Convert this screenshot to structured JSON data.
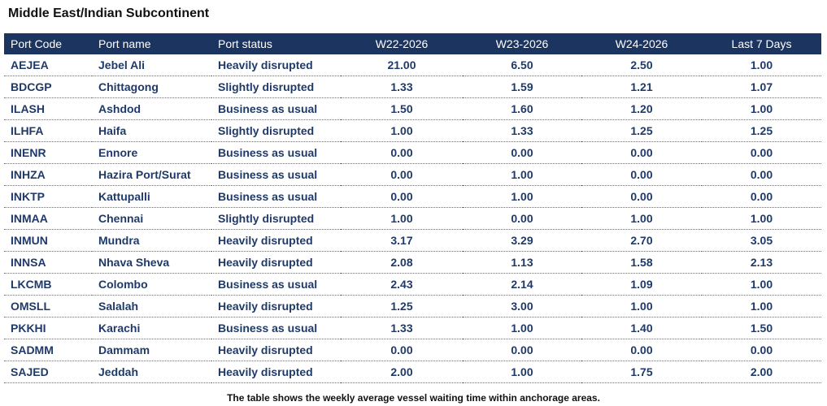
{
  "title": "Middle East/Indian Subcontinent",
  "columns": [
    "Port Code",
    "Port name",
    "Port status",
    "W22-2026",
    "W23-2026",
    "W24-2026",
    "Last 7 Days"
  ],
  "rows": [
    {
      "code": "AEJEA",
      "name": "Jebel Ali",
      "status": "Heavily disrupted",
      "w22": "21.00",
      "w23": "6.50",
      "w24": "2.50",
      "last7": "1.00"
    },
    {
      "code": "BDCGP",
      "name": "Chittagong",
      "status": "Slightly disrupted",
      "w22": "1.33",
      "w23": "1.59",
      "w24": "1.21",
      "last7": "1.07"
    },
    {
      "code": "ILASH",
      "name": "Ashdod",
      "status": "Business as usual",
      "w22": "1.50",
      "w23": "1.60",
      "w24": "1.20",
      "last7": "1.00"
    },
    {
      "code": "ILHFA",
      "name": "Haifa",
      "status": "Slightly disrupted",
      "w22": "1.00",
      "w23": "1.33",
      "w24": "1.25",
      "last7": "1.25"
    },
    {
      "code": "INENR",
      "name": "Ennore",
      "status": "Business as usual",
      "w22": "0.00",
      "w23": "0.00",
      "w24": "0.00",
      "last7": "0.00"
    },
    {
      "code": "INHZA",
      "name": "Hazira Port/Surat",
      "status": "Business as usual",
      "w22": "0.00",
      "w23": "1.00",
      "w24": "0.00",
      "last7": "0.00"
    },
    {
      "code": "INKTP",
      "name": "Kattupalli",
      "status": "Business as usual",
      "w22": "0.00",
      "w23": "1.00",
      "w24": "0.00",
      "last7": "0.00"
    },
    {
      "code": "INMAA",
      "name": "Chennai",
      "status": "Slightly disrupted",
      "w22": "1.00",
      "w23": "0.00",
      "w24": "1.00",
      "last7": "1.00"
    },
    {
      "code": "INMUN",
      "name": "Mundra",
      "status": "Heavily disrupted",
      "w22": "3.17",
      "w23": "3.29",
      "w24": "2.70",
      "last7": "3.05"
    },
    {
      "code": "INNSA",
      "name": "Nhava Sheva",
      "status": "Heavily disrupted",
      "w22": "2.08",
      "w23": "1.13",
      "w24": "1.58",
      "last7": "2.13"
    },
    {
      "code": "LKCMB",
      "name": "Colombo",
      "status": "Business as usual",
      "w22": "2.43",
      "w23": "2.14",
      "w24": "1.09",
      "last7": "1.00"
    },
    {
      "code": "OMSLL",
      "name": "Salalah",
      "status": "Heavily disrupted",
      "w22": "1.25",
      "w23": "3.00",
      "w24": "1.00",
      "last7": "1.00"
    },
    {
      "code": "PKKHI",
      "name": "Karachi",
      "status": "Business as usual",
      "w22": "1.33",
      "w23": "1.00",
      "w24": "1.40",
      "last7": "1.50"
    },
    {
      "code": "SADMM",
      "name": "Dammam",
      "status": "Heavily disrupted",
      "w22": "0.00",
      "w23": "0.00",
      "w24": "0.00",
      "last7": "0.00"
    },
    {
      "code": "SAJED",
      "name": "Jeddah",
      "status": "Heavily disrupted",
      "w22": "2.00",
      "w23": "1.00",
      "w24": "1.75",
      "last7": "2.00"
    }
  ],
  "footnote": "The table shows the weekly average vessel waiting time within anchorage areas."
}
